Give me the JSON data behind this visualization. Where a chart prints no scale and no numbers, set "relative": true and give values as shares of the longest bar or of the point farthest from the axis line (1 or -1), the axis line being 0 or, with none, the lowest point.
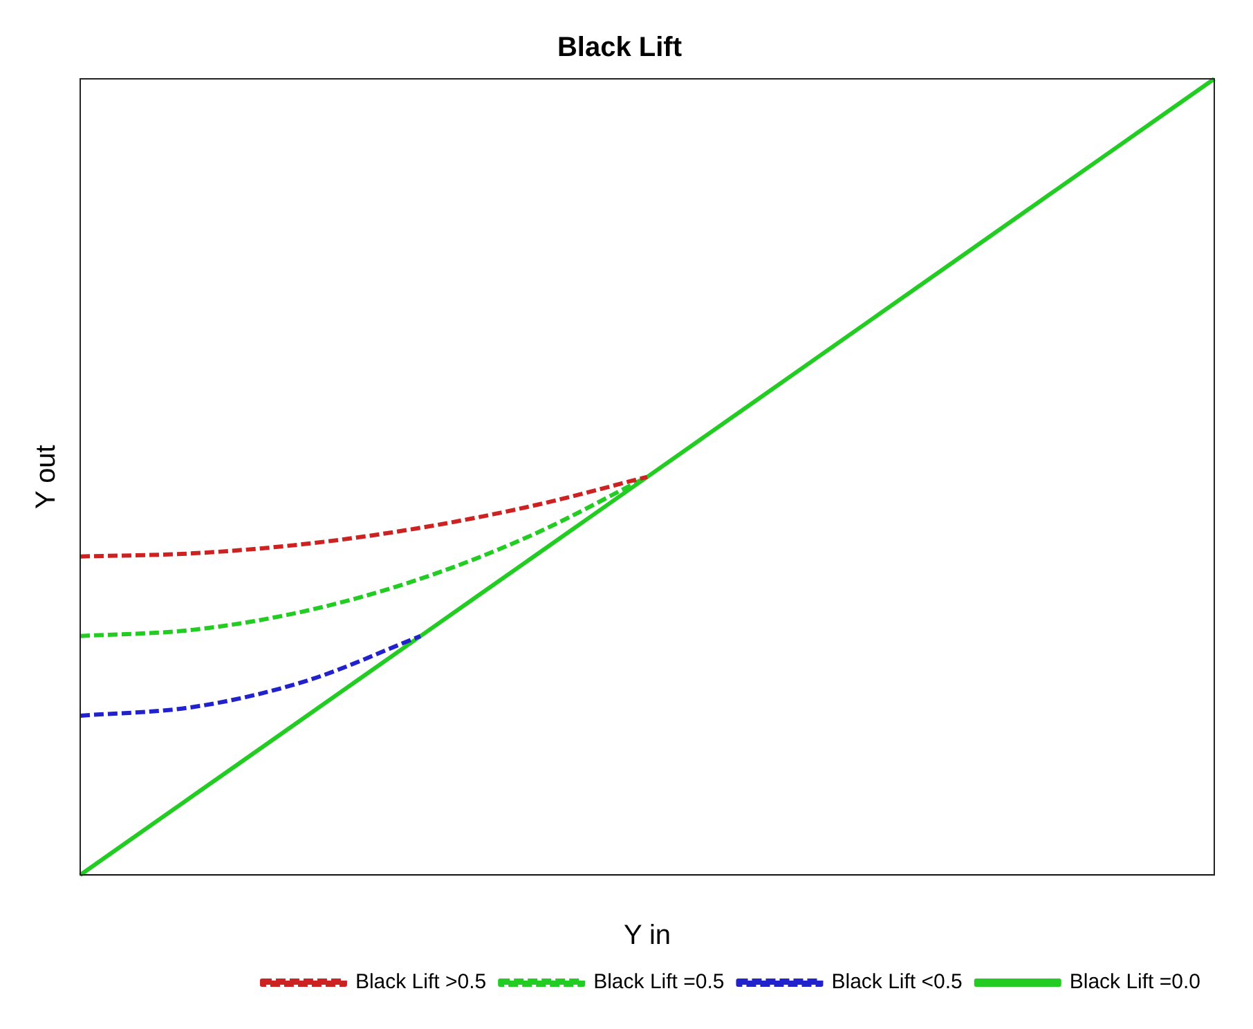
{
  "chart_data": {
    "type": "line",
    "title": "Black Lift",
    "xlabel": "Y in",
    "ylabel": "Y out",
    "relative": true,
    "legend": "bottom right",
    "grid": false,
    "marker": "none",
    "categories": [
      null,
      null,
      null,
      null,
      null,
      null,
      null,
      null,
      null,
      null,
      null
    ],
    "series": [
      {
        "name": "Black Lift >0.5",
        "color": "#cc2222",
        "line_style": "dashed",
        "values": [
          0.4,
          0.404,
          0.416,
          0.436,
          0.464,
          0.5,
          null,
          null,
          null,
          null,
          null
        ]
      },
      {
        "name": "Black Lift =0.5",
        "color": "#22cc22",
        "line_style": "dashed",
        "values": [
          0.3,
          0.308,
          0.332,
          0.372,
          0.428,
          0.5,
          null,
          null,
          null,
          null,
          null
        ]
      },
      {
        "name": "Black Lift <0.5",
        "color": "#2222cc",
        "line_style": "dashed",
        "values": [
          0.2,
          0.211,
          0.244,
          0.3,
          null,
          null,
          null,
          null,
          null,
          null,
          null
        ]
      },
      {
        "name": "Black Lift =0.0",
        "color": "#22cc22",
        "line_style": "solid",
        "values": [
          0,
          0.1,
          0.2,
          0.3,
          0.4,
          0.5,
          0.6,
          0.7,
          0.8,
          0.9,
          1.0
        ]
      }
    ]
  }
}
